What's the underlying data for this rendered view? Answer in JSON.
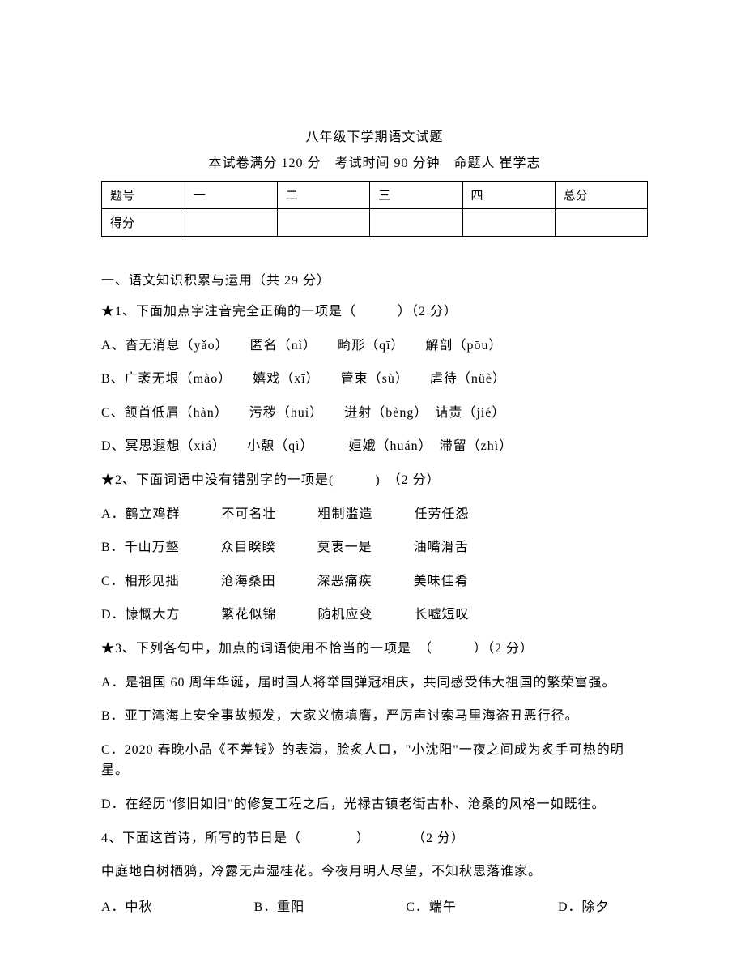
{
  "title": "八年级下学期语文试题",
  "subtitle": "本试卷满分 120 分　考试时间 90 分钟　命题人 崔学志",
  "scoreTable": {
    "headers": [
      "题号",
      "一",
      "二",
      "三",
      "四",
      "总分"
    ],
    "row2": [
      "得分",
      "",
      "",
      "",
      "",
      ""
    ]
  },
  "section1": "一、语文知识积累与运用（共 29 分）",
  "q1": {
    "stem": "★1、下面加点字注音完全正确的一项是（　　　）（2 分）",
    "A": "A、杳无消息（yǎo）　　匿名（nì）　　畸形（qī）　　解剖（pōu）",
    "B": "B、广袤无垠（mào）　　嬉戏（xī）　　管束（sù）　　虐待（nüè）",
    "C": "C、颔首低眉（hàn）　　污秽（huì）　　迸射（bèng）　诘责（jié）",
    "D": "D、冥思遐想（xiá）　　小憩（qì）　　　姮娥（huán）　滞留（zhì）"
  },
  "q2": {
    "stem": "★2、下面词语中没有错别字的一项是(　　　)　（2 分）",
    "A": "A．鹤立鸡群　　　不可名壮　　　粗制滥造　　　任劳任怨",
    "B": "B．千山万壑　　　众目睽睽　　　莫衷一是　　　油嘴滑舌",
    "C": "C．相形见拙　　　沧海桑田　　　深恶痛疾　　　美味佳肴",
    "D": "D．慷慨大方　　　繁花似锦　　　随机应变　　　长嘘短叹"
  },
  "q3": {
    "stem": "★3、下列各句中，加点的词语使用不恰当的一项是　（　　　）（2 分）",
    "A": "A．是祖国 60 周年华诞，届时国人将举国弹冠相庆，共同感受伟大祖国的繁荣富强。",
    "B": "B．亚丁湾海上安全事故频发，大家义愤填膺，严厉声讨索马里海盗丑恶行径。",
    "C": "C．2020 春晚小品《不差钱》的表演，脍炙人口，\"小沈阳\"一夜之间成为炙手可热的明星。",
    "D": "D．在经历\"修旧如旧\"的修复工程之后，光禄古镇老街古朴、沧桑的风格一如既往。"
  },
  "q4": {
    "stem": "4、下面这首诗，所写的节日是（　　　　）　　　　（2 分）",
    "poem": "中庭地白树栖鸦，冷露无声湿桂花。今夜月明人尽望，不知秋思落谁家。",
    "opts": {
      "A": "A．中秋",
      "B": "B．重阳",
      "C": "C．端午",
      "D": "D．除夕"
    }
  }
}
